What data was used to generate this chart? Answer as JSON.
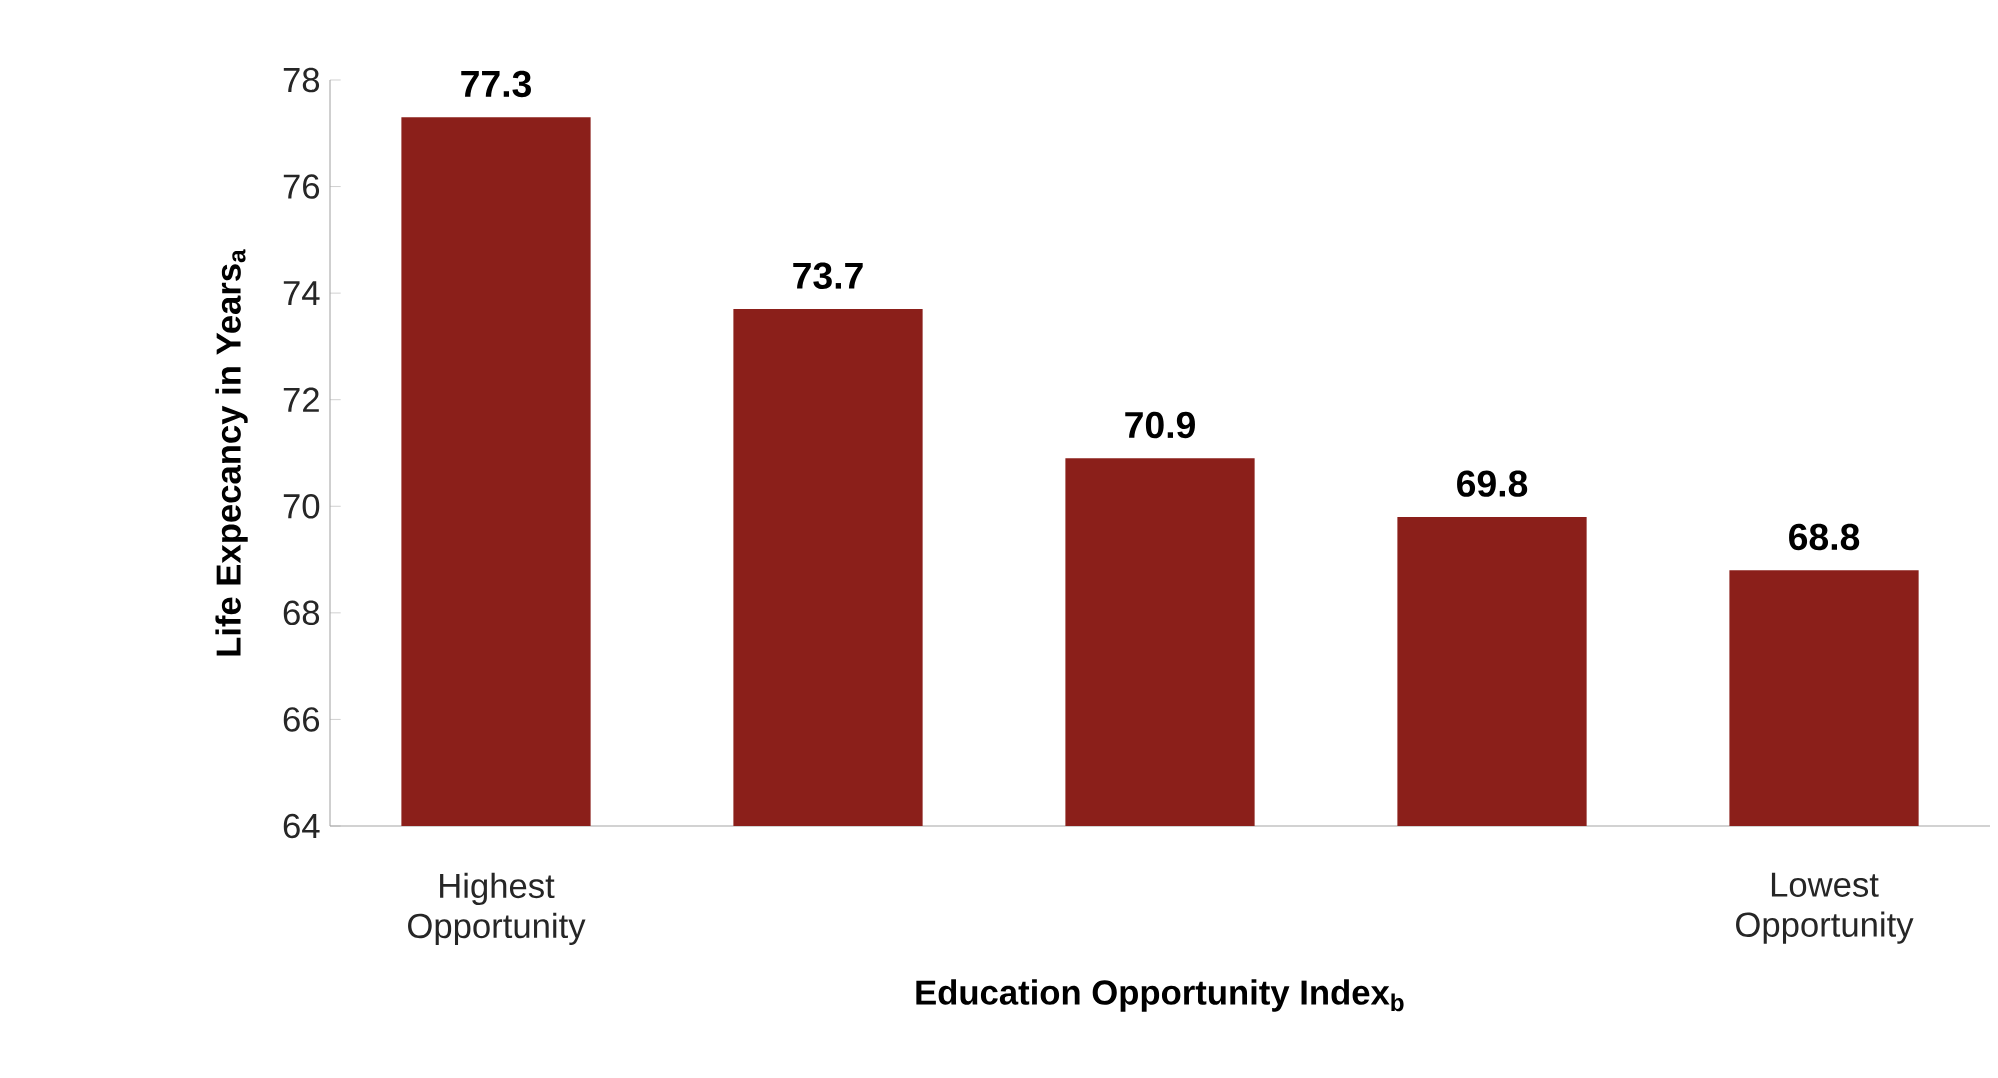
{
  "chart_data": {
    "type": "bar",
    "categories": [
      "Highest Opportunity",
      null,
      null,
      null,
      "Lowest Opportunity"
    ],
    "values": [
      77.3,
      73.7,
      70.9,
      69.8,
      68.8
    ],
    "color": "#8b1f1a",
    "xlabel": "Education Opportunity Index$_{b}$",
    "ylabel": "Life Expecancy in Years$_{a}$",
    "ylim": [
      64,
      78
    ],
    "yticks": [
      64,
      66,
      68,
      70,
      72,
      74,
      76,
      78
    ],
    "data_labels": true
  }
}
